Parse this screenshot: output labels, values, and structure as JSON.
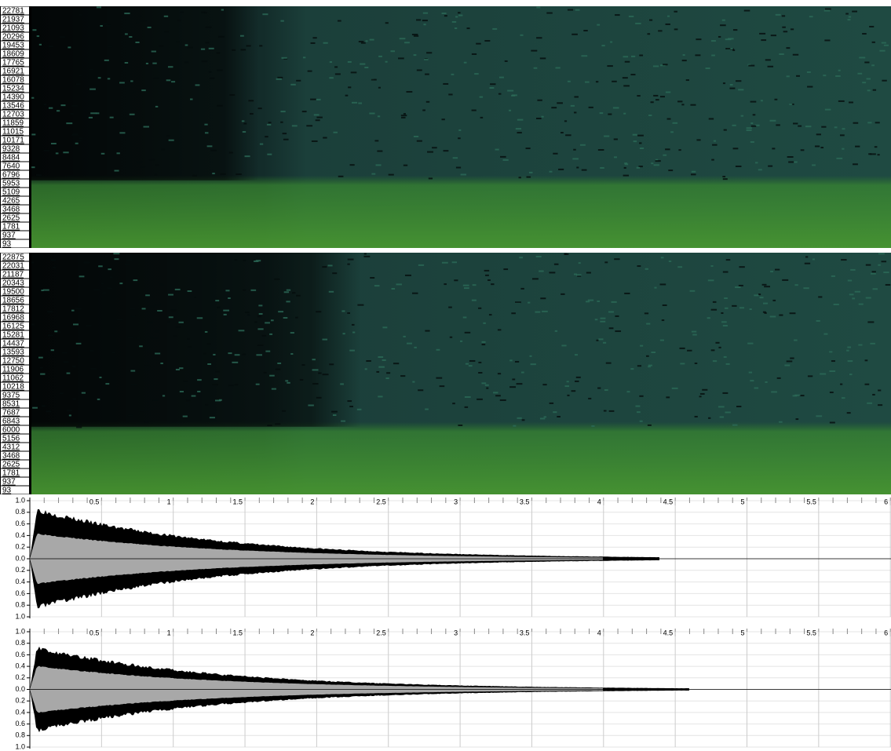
{
  "spectrograms": [
    {
      "labels": [
        "22781",
        "21937",
        "21093",
        "20296",
        "19453",
        "18609",
        "17765",
        "16921",
        "16078",
        "15234",
        "14390",
        "13546",
        "12703",
        "11859",
        "11015",
        "10171",
        "9328",
        "8484",
        "7640",
        "6796",
        "5953",
        "5109",
        "4265",
        "3468",
        "2625",
        "1781",
        "937",
        "93"
      ]
    },
    {
      "labels": [
        "22875",
        "22031",
        "21187",
        "20343",
        "19500",
        "18656",
        "17812",
        "16968",
        "16125",
        "15281",
        "14437",
        "13593",
        "12750",
        "11906",
        "11062",
        "10218",
        "9375",
        "8531",
        "7687",
        "6843",
        "6000",
        "5156",
        "4312",
        "3468",
        "2625",
        "1781",
        "937",
        "93"
      ]
    }
  ],
  "waveforms": [
    {
      "y_labels": [
        "1.0",
        "0.8",
        "0.6",
        "0.4",
        "0.2",
        "0.0",
        "0.2",
        "0.4",
        "0.6",
        "0.8",
        "1.0"
      ],
      "x_labels": [
        "0.5",
        "1",
        "1.5",
        "2",
        "2.5",
        "3",
        "3.5",
        "4",
        "4.5",
        "5",
        "5.5",
        "6"
      ]
    },
    {
      "y_labels": [
        "1.0",
        "0.8",
        "0.6",
        "0.4",
        "0.2",
        "0.0",
        "0.2",
        "0.4",
        "0.6",
        "0.8",
        "1.0"
      ],
      "x_labels": [
        "0.5",
        "1",
        "1.5",
        "2",
        "2.5",
        "3",
        "3.5",
        "4",
        "4.5",
        "5",
        "5.5",
        "6"
      ]
    }
  ]
}
